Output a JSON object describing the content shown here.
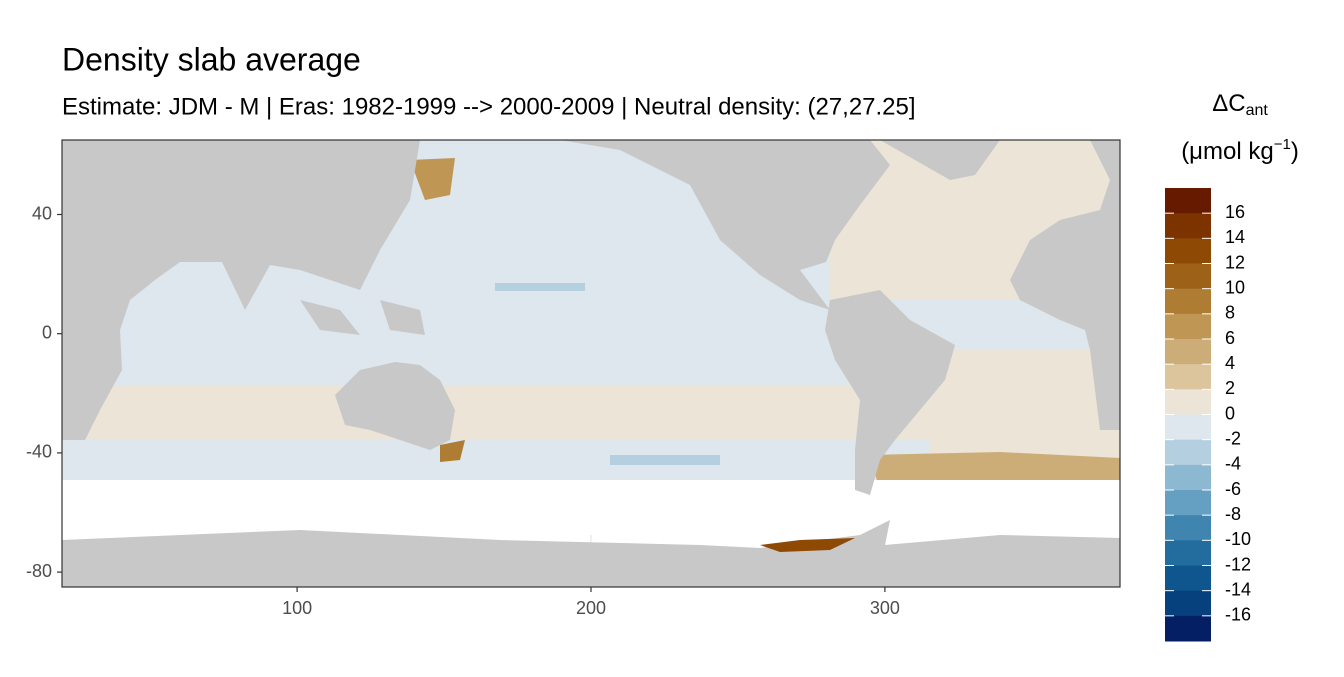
{
  "chart_data": {
    "type": "map",
    "title": "Density slab average",
    "subtitle": "Estimate: JDM - M | Eras: 1982-1999 --> 2000-2009 | Neutral density: (27,27.25]",
    "xlim": [
      20,
      380
    ],
    "xticks": [
      100,
      200,
      300
    ],
    "ylim": [
      -85,
      65
    ],
    "yticks": [
      40,
      0,
      -40,
      -80
    ],
    "grid": true,
    "legend": {
      "title": "ΔC",
      "title_subscript": "ant",
      "unit": "(μmol kg",
      "unit_superscript": "−1",
      "unit_end": ")",
      "limits": [
        -18,
        18
      ],
      "breaks": [
        16,
        14,
        12,
        10,
        8,
        6,
        4,
        2,
        0,
        -2,
        -4,
        -6,
        -8,
        -10,
        -12,
        -14,
        -16
      ],
      "colors": [
        "#661a00",
        "#7d3300",
        "#8e4a05",
        "#9d6218",
        "#ae7c32",
        "#bf9653",
        "#cdad77",
        "#dcc59d",
        "#ece4d6",
        "#dde7ed",
        "#b4cfe0",
        "#8db8d1",
        "#65a0c3",
        "#3f85b0",
        "#236c9e",
        "#0f568f",
        "#06407d",
        "#041f63"
      ]
    }
  }
}
